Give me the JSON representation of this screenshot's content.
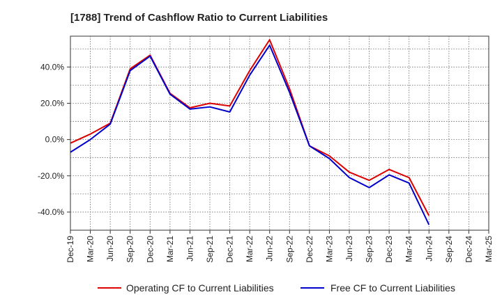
{
  "chart_data": {
    "type": "line",
    "title": "[1788]  Trend of Cashflow Ratio to Current Liabilities",
    "xlabel": "",
    "ylabel": "",
    "x_ticks": [
      "Dec-19",
      "Mar-20",
      "Jun-20",
      "Sep-20",
      "Dec-20",
      "Mar-21",
      "Jun-21",
      "Sep-21",
      "Dec-21",
      "Mar-22",
      "Jun-22",
      "Sep-22",
      "Dec-22",
      "Mar-23",
      "Jun-23",
      "Sep-23",
      "Dec-23",
      "Mar-24",
      "Jun-24",
      "Sep-24",
      "Dec-24",
      "Mar-25"
    ],
    "y_ticks": [
      "40.0%",
      "20.0%",
      "0.0%",
      "-20.0%",
      "-40.0%"
    ],
    "y_tick_values": [
      40,
      20,
      0,
      -20,
      -40
    ],
    "ylim": [
      -50,
      57
    ],
    "grid": true,
    "legend_position": "bottom",
    "series": [
      {
        "name": "Operating CF to Current Liabilities",
        "color": "#dd0000",
        "x": [
          "Dec-19",
          "Mar-20",
          "Jun-20",
          "Sep-20",
          "Dec-20",
          "Mar-21",
          "Jun-21",
          "Sep-21",
          "Dec-21",
          "Mar-22",
          "Jun-22",
          "Sep-22",
          "Dec-22",
          "Mar-23",
          "Jun-23",
          "Sep-23",
          "Dec-23",
          "Mar-24",
          "Jun-24"
        ],
        "values": [
          -2,
          3,
          9,
          39,
          46.5,
          25.5,
          17.5,
          20,
          18.5,
          38,
          55,
          28,
          -3.5,
          -9,
          -18,
          -22.5,
          -16.5,
          -21,
          -42
        ]
      },
      {
        "name": "Free CF to Current Liabilities",
        "color": "#0000cc",
        "x": [
          "Dec-19",
          "Mar-20",
          "Jun-20",
          "Sep-20",
          "Dec-20",
          "Mar-21",
          "Jun-21",
          "Sep-21",
          "Dec-21",
          "Mar-22",
          "Jun-22",
          "Sep-22",
          "Dec-22",
          "Mar-23",
          "Jun-23",
          "Sep-23",
          "Dec-23",
          "Mar-24",
          "Jun-24"
        ],
        "values": [
          -7,
          0,
          8.5,
          38,
          46,
          25,
          16.8,
          18,
          15.2,
          35.5,
          52,
          26,
          -3.5,
          -10.5,
          -21,
          -26.5,
          -19.5,
          -24,
          -47
        ]
      }
    ]
  }
}
